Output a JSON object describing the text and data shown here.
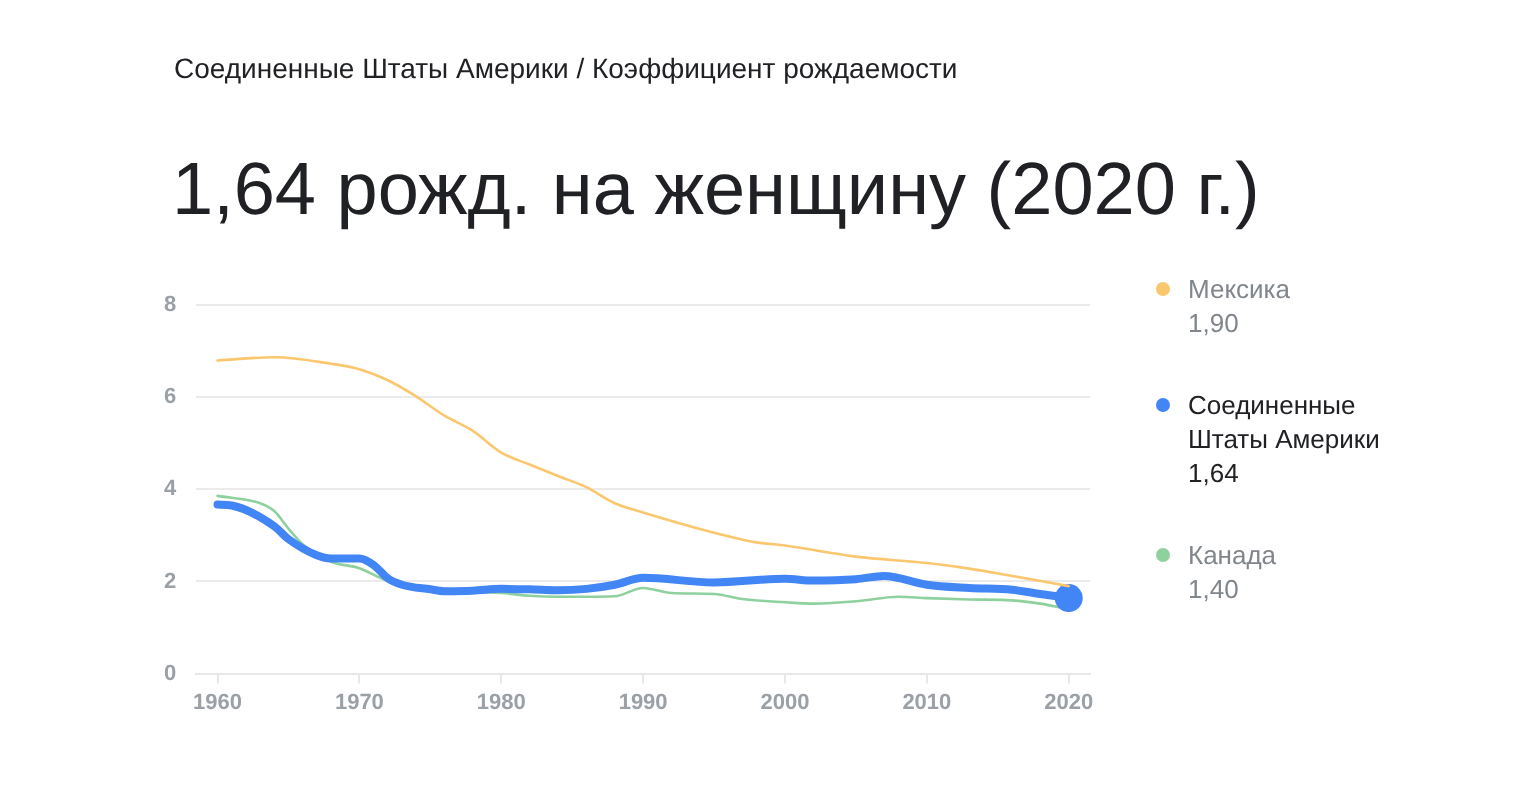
{
  "chart_data": {
    "type": "line",
    "title": "1,64 рожд. на женщину (2020 г.)",
    "subtitle": "Соединенные Штаты Америки / Коэффициент рождаемости",
    "xlim": [
      1958.5,
      2021.5
    ],
    "xticks": [
      1960,
      1970,
      1980,
      1990,
      2000,
      2010,
      2020
    ],
    "ylim": [
      0,
      8
    ],
    "yticks": [
      0,
      2,
      4,
      6,
      8
    ],
    "grid": "y",
    "legend": "right",
    "annotations": [
      "1,90",
      "1,64",
      "1,40"
    ],
    "series": [
      {
        "name": "Мексика",
        "color": "#fbc76e",
        "x": [
          1960,
          1964,
          1968,
          1970,
          1972,
          1974,
          1976,
          1978,
          1980,
          1982,
          1984,
          1986,
          1988,
          1990,
          1995,
          1998,
          2000,
          2005,
          2010,
          2013,
          2016,
          2020
        ],
        "values": [
          6.8,
          6.87,
          6.73,
          6.61,
          6.37,
          6.02,
          5.6,
          5.27,
          4.8,
          4.54,
          4.29,
          4.05,
          3.7,
          3.5,
          3.06,
          2.85,
          2.78,
          2.54,
          2.4,
          2.28,
          2.12,
          1.9
        ]
      },
      {
        "type": "scatter",
        "color": "#4285f4",
        "marker": "circle",
        "x": [
          2020
        ],
        "values": [
          1.64
        ]
      },
      {
        "name": "Соединенные Штаты Америки",
        "color": "#4285f4",
        "x": [
          1960,
          1961,
          1964,
          1965,
          1967,
          1968,
          1970,
          1971,
          1972,
          1973,
          1975,
          1976,
          1978,
          1980,
          1982,
          1984,
          1986,
          1988,
          1990,
          1995,
          2000,
          2002,
          2005,
          2007,
          2010,
          2013,
          2016,
          2018,
          2020
        ],
        "values": [
          3.67,
          3.65,
          3.2,
          2.92,
          2.57,
          2.5,
          2.5,
          2.36,
          2.07,
          1.93,
          1.83,
          1.79,
          1.8,
          1.84,
          1.83,
          1.81,
          1.84,
          1.93,
          2.08,
          1.98,
          2.06,
          2.02,
          2.05,
          2.12,
          1.93,
          1.86,
          1.82,
          1.73,
          1.64
        ]
      },
      {
        "name": "Канада",
        "color": "#8fd19e",
        "x": [
          1960,
          1963,
          1964,
          1965,
          1966,
          1968,
          1970,
          1972,
          1974,
          1976,
          1980,
          1982,
          1984,
          1986,
          1988,
          1990,
          1992,
          1995,
          1997,
          2000,
          2002,
          2005,
          2008,
          2010,
          2013,
          2016,
          2018,
          2020
        ],
        "values": [
          3.86,
          3.7,
          3.53,
          3.15,
          2.81,
          2.43,
          2.29,
          2.01,
          1.87,
          1.8,
          1.75,
          1.69,
          1.67,
          1.67,
          1.68,
          1.86,
          1.75,
          1.73,
          1.62,
          1.55,
          1.52,
          1.57,
          1.67,
          1.64,
          1.61,
          1.59,
          1.52,
          1.4
        ]
      }
    ]
  }
}
